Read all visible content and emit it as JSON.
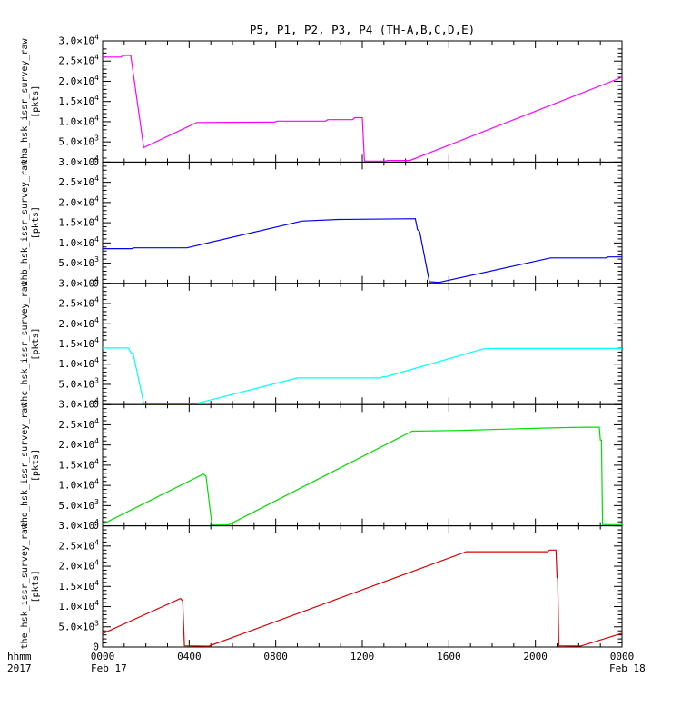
{
  "title": "P5, P1, P2, P3, P4 (TH-A,B,C,D,E)",
  "footer": {
    "time_label": "hhmm",
    "year_label": "2017"
  },
  "x_axis": {
    "range_hours": [
      0,
      24
    ],
    "major_ticks_hours": [
      0,
      4,
      8,
      12,
      16,
      20,
      24
    ],
    "major_tick_labels": [
      "0000",
      "0400",
      "0800",
      "1200",
      "1600",
      "2000",
      "0000"
    ],
    "minor_tick_every_hours": 1,
    "start_date_label": "Feb 17",
    "end_date_label": "Feb 18"
  },
  "y_axis": {
    "range": [
      0,
      30000
    ],
    "major_tick_values": [
      0,
      5000,
      10000,
      15000,
      20000,
      25000,
      30000
    ],
    "major_tick_labels": [
      {
        "mantissa": "0",
        "exponent": ""
      },
      {
        "mantissa": "5.0×10",
        "exponent": "3"
      },
      {
        "mantissa": "1.0×10",
        "exponent": "4"
      },
      {
        "mantissa": "1.5×10",
        "exponent": "4"
      },
      {
        "mantissa": "2.0×10",
        "exponent": "4"
      },
      {
        "mantissa": "2.5×10",
        "exponent": "4"
      },
      {
        "mantissa": "3.0×10",
        "exponent": "4"
      }
    ],
    "minor_tick_step": 1000,
    "units": "[pkts]"
  },
  "chart_data": [
    {
      "type": "line",
      "name": "P5",
      "probe": "TH-A",
      "ylabel": "tha_hsk_issr_survey_raw",
      "ylabel_units": "[pkts]",
      "color": "#ff00ff",
      "points_hour_value": [
        [
          0,
          26000
        ],
        [
          0.85,
          26000
        ],
        [
          0.95,
          26400
        ],
        [
          1.3,
          26400
        ],
        [
          1.9,
          3600
        ],
        [
          4.35,
          9800
        ],
        [
          7.95,
          9900
        ],
        [
          8.05,
          10150
        ],
        [
          10.3,
          10150
        ],
        [
          10.4,
          10500
        ],
        [
          11.55,
          10500
        ],
        [
          11.65,
          11000
        ],
        [
          12.0,
          11000
        ],
        [
          12.1,
          250
        ],
        [
          13.05,
          250
        ],
        [
          13.15,
          400
        ],
        [
          14.2,
          400
        ],
        [
          24,
          21000
        ]
      ]
    },
    {
      "type": "line",
      "name": "P1",
      "probe": "TH-B",
      "ylabel": "thb_hsk_issr_survey_raw",
      "ylabel_units": "[pkts]",
      "color": "#0000ee",
      "points_hour_value": [
        [
          0,
          8600
        ],
        [
          1.35,
          8600
        ],
        [
          1.45,
          8800
        ],
        [
          3.9,
          8800
        ],
        [
          9.2,
          15400
        ],
        [
          10.9,
          15800
        ],
        [
          14.45,
          16000
        ],
        [
          14.55,
          13300
        ],
        [
          14.65,
          12800
        ],
        [
          15.1,
          400
        ],
        [
          15.55,
          250
        ],
        [
          20.7,
          6300
        ],
        [
          23.25,
          6300
        ],
        [
          23.35,
          6550
        ],
        [
          24,
          6550
        ]
      ]
    },
    {
      "type": "line",
      "name": "P2",
      "probe": "TH-C",
      "ylabel": "thc_hsk_issr_survey_raw",
      "ylabel_units": "[pkts]",
      "color": "#00ffff",
      "points_hour_value": [
        [
          0,
          14000
        ],
        [
          1.2,
          14000
        ],
        [
          1.3,
          12900
        ],
        [
          1.42,
          12500
        ],
        [
          1.9,
          300
        ],
        [
          4.35,
          300
        ],
        [
          9.0,
          6600
        ],
        [
          12.85,
          6600
        ],
        [
          12.95,
          6900
        ],
        [
          13.1,
          6900
        ],
        [
          17.6,
          13800
        ],
        [
          18.1,
          13900
        ],
        [
          24,
          13900
        ]
      ]
    },
    {
      "type": "line",
      "name": "P3",
      "probe": "TH-D",
      "ylabel": "thd_hsk_issr_survey_raw",
      "ylabel_units": "[pkts]",
      "color": "#00dd00",
      "points_hour_value": [
        [
          0,
          400
        ],
        [
          4.65,
          12800
        ],
        [
          4.78,
          12300
        ],
        [
          5.05,
          200
        ],
        [
          5.8,
          200
        ],
        [
          14.3,
          23400
        ],
        [
          16.5,
          23600
        ],
        [
          18.5,
          23900
        ],
        [
          20.5,
          24200
        ],
        [
          22.3,
          24400
        ],
        [
          22.95,
          24400
        ],
        [
          23.0,
          21200
        ],
        [
          23.05,
          21200
        ],
        [
          23.1,
          300
        ],
        [
          24,
          300
        ]
      ]
    },
    {
      "type": "line",
      "name": "P4",
      "probe": "TH-E",
      "ylabel": "the_hsk_issr_survey_raw",
      "ylabel_units": "[pkts]",
      "color": "#dd0000",
      "points_hour_value": [
        [
          0,
          3300
        ],
        [
          3.6,
          12000
        ],
        [
          3.7,
          11400
        ],
        [
          3.78,
          300
        ],
        [
          4.9,
          200
        ],
        [
          16.8,
          23600
        ],
        [
          20.55,
          23600
        ],
        [
          20.65,
          24000
        ],
        [
          20.95,
          24000
        ],
        [
          21.0,
          17200
        ],
        [
          21.03,
          17000
        ],
        [
          21.08,
          300
        ],
        [
          22.1,
          250
        ],
        [
          24,
          3400
        ]
      ]
    }
  ]
}
